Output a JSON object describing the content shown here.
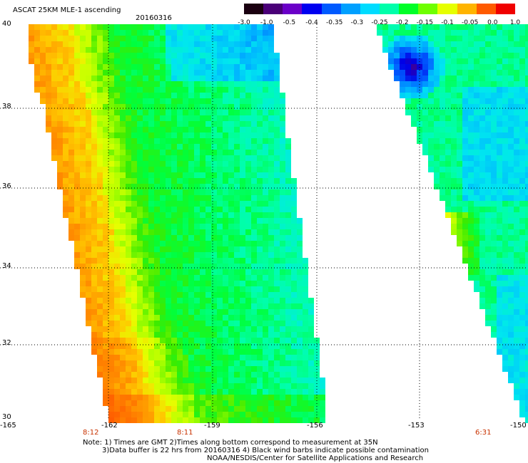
{
  "title": "ASCAT 25KM MLE-1 ascending",
  "date": "20160316",
  "colorbar": {
    "labels": [
      "-3.0",
      "-1.0",
      "-0.5",
      "-0.4",
      "-0.35",
      "-0.3",
      "-0.25",
      "-0.2",
      "-0.15",
      "-0.1",
      "-0.05",
      "0.0",
      "1.0"
    ],
    "colors": [
      "#1a0010",
      "#4a0078",
      "#6a00c8",
      "#0000f0",
      "#005aff",
      "#00a0ff",
      "#00dcff",
      "#00ffaa",
      "#00ff28",
      "#6eff00",
      "#e6ff00",
      "#ffb400",
      "#ff5a00",
      "#f00000"
    ]
  },
  "axes": {
    "lon_ticks": [
      "-165",
      "-162",
      "-159",
      "-156",
      "-153",
      "-150"
    ],
    "lat_ticks": [
      "40",
      "38",
      "36",
      "34",
      "32",
      "30"
    ]
  },
  "times": [
    "8:12",
    "8:11",
    "6:31"
  ],
  "notes": [
    "Note: 1) Times are GMT 2)Times along bottom correspond to measurement at 35N",
    "3)Data buffer is 22 hrs from 20160316 4) Black wind barbs indicate possible contamination",
    "NOAA/NESDIS/Center for Satellite Applications and Research"
  ],
  "colors": {
    "time_label": "#c83200",
    "grid": "#000000"
  }
}
